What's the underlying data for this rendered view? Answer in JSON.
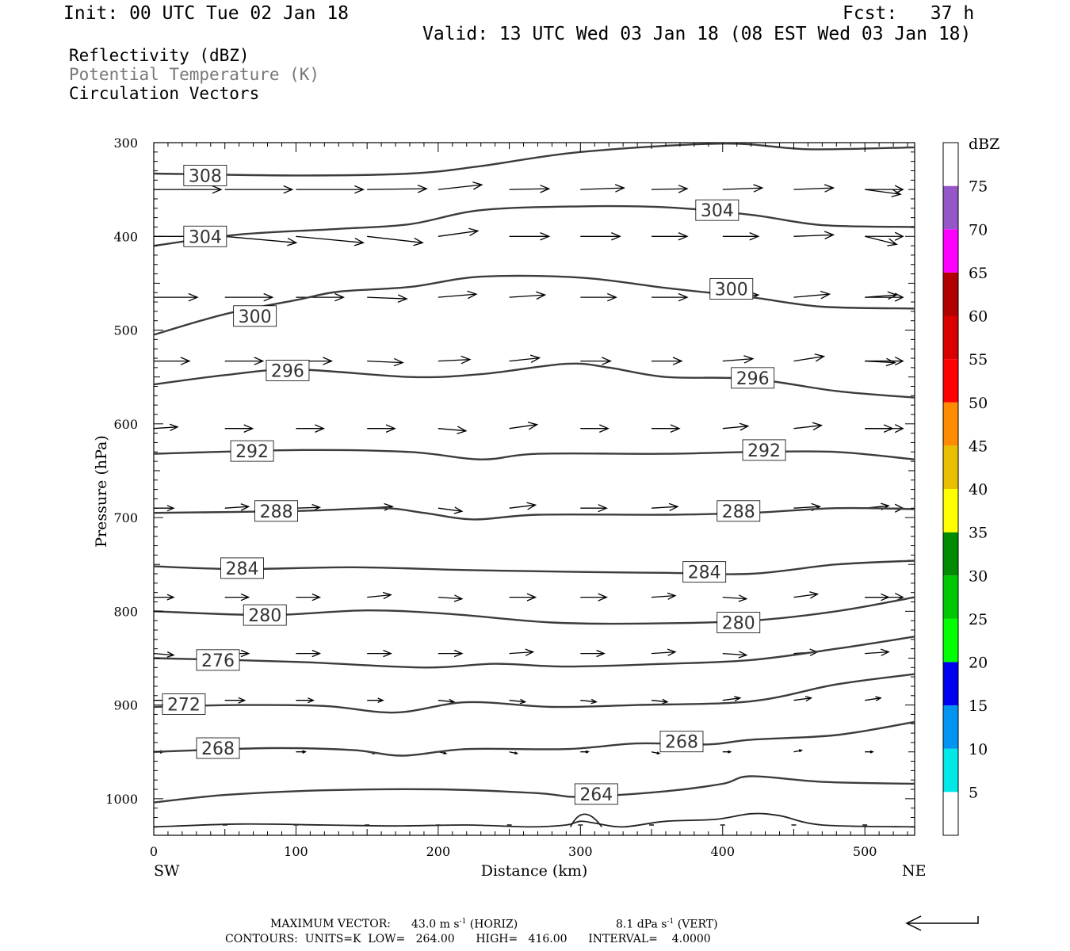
{
  "header": {
    "init": "Init: 00 UTC Tue 02 Jan 18",
    "fcst": "Fcst:   37 h",
    "valid": "Valid: 13 UTC Wed 03 Jan 18 (08 EST Wed 03 Jan 18)"
  },
  "fields": {
    "reflectivity": "Reflectivity (dBZ)",
    "theta": "Potential Temperature (K)",
    "vectors": "Circulation Vectors"
  },
  "footer": {
    "maxvec_label": "MAXIMUM VECTOR:",
    "maxvec_h": "43.0 m s",
    "maxvec_h_unit": "(HORIZ)",
    "maxvec_v": "8.1 dPa s",
    "maxvec_v_unit": "(VERT)",
    "exp": "-1",
    "contours": "CONTOURS:  UNITS=K  LOW=   264.00      HIGH=   416.00      INTERVAL=    4.0000"
  },
  "colors": {
    "contour": "#3c3c3c",
    "theta_label": "#777777"
  },
  "chart_data": {
    "type": "line",
    "xlabel": "Distance (km)",
    "ylabel": "Pressure (hPa)",
    "xlim": [
      0,
      535
    ],
    "ylim": [
      1039,
      300
    ],
    "x_ticks": [
      0,
      100,
      200,
      300,
      400,
      500
    ],
    "y_ticks": [
      300,
      400,
      500,
      600,
      700,
      800,
      900,
      1000
    ],
    "end_labels": {
      "left": "SW",
      "right": "NE"
    },
    "colorbar": {
      "title": "dBZ",
      "levels": [
        "5",
        "10",
        "15",
        "20",
        "25",
        "30",
        "35",
        "40",
        "45",
        "50",
        "55",
        "60",
        "65",
        "70",
        "75"
      ],
      "colors": [
        "#ffffff",
        "#00e8e8",
        "#0095f0",
        "#0000f0",
        "#00ff00",
        "#00c800",
        "#008c00",
        "#ffff00",
        "#e8c000",
        "#ff8c00",
        "#ff0000",
        "#d80000",
        "#b00000",
        "#ff00ff",
        "#9655c8",
        "#ffffff"
      ]
    },
    "series": [
      {
        "label": "308",
        "points": [
          [
            0,
            333
          ],
          [
            100,
            335
          ],
          [
            180,
            333
          ],
          [
            230,
            325
          ],
          [
            300,
            310
          ],
          [
            400,
            301
          ],
          [
            460,
            307
          ],
          [
            535,
            305
          ]
        ],
        "labels_at": [
          [
            25,
            335
          ]
        ]
      },
      {
        "label": "304",
        "points": [
          [
            0,
            410
          ],
          [
            60,
            398
          ],
          [
            130,
            392
          ],
          [
            180,
            387
          ],
          [
            230,
            372
          ],
          [
            300,
            368
          ],
          [
            360,
            369
          ],
          [
            420,
            377
          ],
          [
            470,
            388
          ],
          [
            535,
            390
          ]
        ],
        "labels_at": [
          [
            25,
            400
          ],
          [
            385,
            372
          ]
        ]
      },
      {
        "label": "300",
        "points": [
          [
            0,
            505
          ],
          [
            50,
            483
          ],
          [
            100,
            468
          ],
          [
            130,
            459
          ],
          [
            180,
            454
          ],
          [
            230,
            443
          ],
          [
            300,
            444
          ],
          [
            360,
            455
          ],
          [
            420,
            465
          ],
          [
            470,
            475
          ],
          [
            535,
            477
          ]
        ],
        "labels_at": [
          [
            60,
            485
          ],
          [
            395,
            456
          ]
        ]
      },
      {
        "label": "296",
        "points": [
          [
            0,
            558
          ],
          [
            50,
            548
          ],
          [
            100,
            542
          ],
          [
            180,
            550
          ],
          [
            230,
            547
          ],
          [
            290,
            536
          ],
          [
            320,
            540
          ],
          [
            360,
            550
          ],
          [
            420,
            552
          ],
          [
            480,
            565
          ],
          [
            535,
            572
          ]
        ],
        "labels_at": [
          [
            83,
            543
          ],
          [
            410,
            551
          ]
        ]
      },
      {
        "label": "292",
        "points": [
          [
            0,
            632
          ],
          [
            100,
            628
          ],
          [
            180,
            630
          ],
          [
            230,
            638
          ],
          [
            270,
            632
          ],
          [
            360,
            632
          ],
          [
            420,
            630
          ],
          [
            480,
            630
          ],
          [
            535,
            638
          ]
        ],
        "labels_at": [
          [
            58,
            629
          ],
          [
            418,
            628
          ]
        ]
      },
      {
        "label": "288",
        "points": [
          [
            0,
            695
          ],
          [
            100,
            693
          ],
          [
            160,
            690
          ],
          [
            190,
            695
          ],
          [
            225,
            702
          ],
          [
            270,
            697
          ],
          [
            360,
            697
          ],
          [
            420,
            695
          ],
          [
            480,
            690
          ],
          [
            535,
            691
          ]
        ],
        "labels_at": [
          [
            75,
            693
          ],
          [
            400,
            693
          ]
        ]
      },
      {
        "label": "284",
        "points": [
          [
            0,
            752
          ],
          [
            60,
            755
          ],
          [
            140,
            753
          ],
          [
            220,
            756
          ],
          [
            300,
            758
          ],
          [
            360,
            759
          ],
          [
            420,
            760
          ],
          [
            480,
            750
          ],
          [
            535,
            746
          ]
        ],
        "labels_at": [
          [
            51,
            754
          ],
          [
            376,
            758
          ]
        ]
      },
      {
        "label": "280",
        "points": [
          [
            0,
            800
          ],
          [
            80,
            804
          ],
          [
            150,
            799
          ],
          [
            210,
            803
          ],
          [
            280,
            812
          ],
          [
            350,
            813
          ],
          [
            420,
            810
          ],
          [
            480,
            800
          ],
          [
            535,
            785
          ]
        ],
        "labels_at": [
          [
            67,
            804
          ],
          [
            400,
            812
          ]
        ]
      },
      {
        "label": "276",
        "points": [
          [
            0,
            850
          ],
          [
            100,
            854
          ],
          [
            190,
            860
          ],
          [
            240,
            856
          ],
          [
            290,
            859
          ],
          [
            360,
            856
          ],
          [
            420,
            852
          ],
          [
            480,
            840
          ],
          [
            535,
            827
          ]
        ],
        "labels_at": [
          [
            34,
            852
          ]
        ]
      },
      {
        "label": "272",
        "points": [
          [
            0,
            902
          ],
          [
            60,
            900
          ],
          [
            120,
            901
          ],
          [
            170,
            908
          ],
          [
            220,
            897
          ],
          [
            280,
            902
          ],
          [
            340,
            900
          ],
          [
            420,
            896
          ],
          [
            480,
            878
          ],
          [
            535,
            867
          ]
        ],
        "labels_at": [
          [
            10,
            899
          ]
        ]
      },
      {
        "label": "268",
        "points": [
          [
            0,
            950
          ],
          [
            80,
            946
          ],
          [
            140,
            948
          ],
          [
            175,
            954
          ],
          [
            220,
            947
          ],
          [
            290,
            947
          ],
          [
            340,
            941
          ],
          [
            390,
            942
          ],
          [
            420,
            937
          ],
          [
            480,
            932
          ],
          [
            535,
            918
          ]
        ],
        "labels_at": [
          [
            34,
            946
          ],
          [
            360,
            939
          ]
        ]
      },
      {
        "label": "264",
        "points": [
          [
            0,
            1004
          ],
          [
            50,
            996
          ],
          [
            120,
            991
          ],
          [
            200,
            990
          ],
          [
            270,
            994
          ],
          [
            300,
            998
          ],
          [
            360,
            992
          ],
          [
            400,
            984
          ],
          [
            420,
            976
          ],
          [
            470,
            982
          ],
          [
            535,
            984
          ]
        ],
        "labels_at": [
          [
            300,
            995
          ]
        ]
      }
    ]
  }
}
